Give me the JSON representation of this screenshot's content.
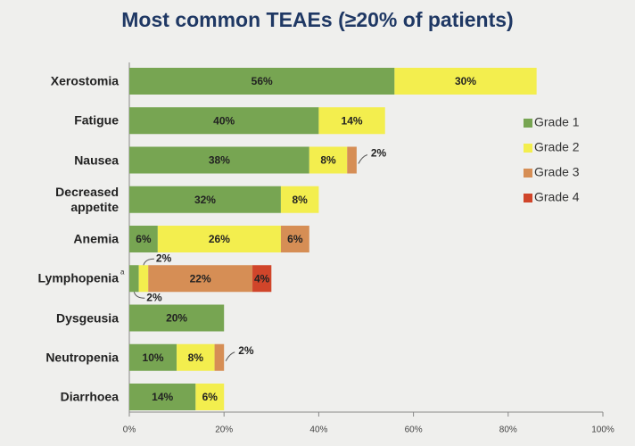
{
  "chart_data": {
    "type": "stacked_barh",
    "title": "Most common TEAEs (≥20% of patients)",
    "categories": [
      "Xerostomia",
      "Fatigue",
      "Nausea",
      "Decreased appetite",
      "Anemia",
      "Lymphopenia",
      "Dysgeusia",
      "Neutropenia",
      "Diarrhoea"
    ],
    "category_notes": [
      null,
      null,
      null,
      null,
      null,
      "a",
      null,
      null,
      null
    ],
    "series": [
      {
        "name": "Grade 1",
        "color": "#77a552",
        "values": [
          56,
          40,
          38,
          32,
          6,
          2,
          20,
          10,
          14
        ],
        "value_labels": [
          "56%",
          "40%",
          "38%",
          "32%",
          "6%",
          "2%",
          "20%",
          "10%",
          "14%"
        ]
      },
      {
        "name": "Grade 2",
        "color": "#f3ee4e",
        "values": [
          30,
          14,
          8,
          8,
          26,
          2,
          null,
          8,
          6
        ],
        "value_labels": [
          "30%",
          "14%",
          "8%",
          "8%",
          "26%",
          "2%",
          null,
          "8%",
          "6%"
        ]
      },
      {
        "name": "Grade 3",
        "color": "#d68e55",
        "values": [
          null,
          null,
          2,
          null,
          6,
          22,
          null,
          2,
          null
        ],
        "value_labels": [
          null,
          null,
          "2%",
          null,
          "6%",
          "22%",
          null,
          "2%",
          null
        ]
      },
      {
        "name": "Grade 4",
        "color": "#d0452a",
        "values": [
          null,
          null,
          null,
          null,
          null,
          4,
          null,
          null,
          null
        ],
        "value_labels": [
          null,
          null,
          null,
          null,
          null,
          "4%",
          null,
          null,
          null
        ]
      }
    ],
    "xlim": [
      0,
      100
    ],
    "xticks": [
      {
        "value": 0,
        "label": "0%"
      },
      {
        "value": 20,
        "label": "20%"
      },
      {
        "value": 40,
        "label": "40%"
      },
      {
        "value": 60,
        "label": "60%"
      },
      {
        "value": 80,
        "label": "80%"
      },
      {
        "value": 100,
        "label": "100%"
      }
    ],
    "legend": "right"
  }
}
